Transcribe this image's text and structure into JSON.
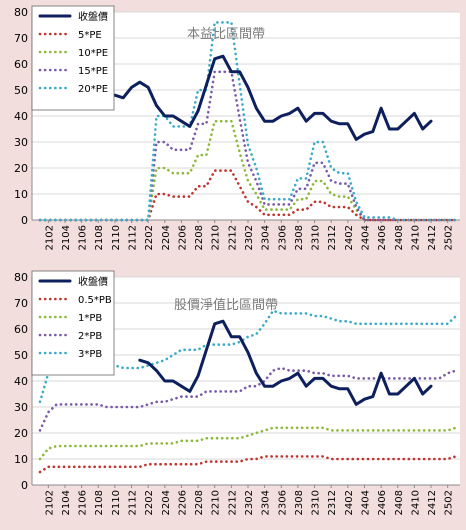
{
  "chart_data": [
    {
      "type": "line",
      "title": "本益比區間帶",
      "categories": [
        "2101",
        "2102",
        "2103",
        "2104",
        "2105",
        "2106",
        "2107",
        "2108",
        "2109",
        "2110",
        "2111",
        "2112",
        "2201",
        "2202",
        "2203",
        "2204",
        "2205",
        "2206",
        "2207",
        "2208",
        "2209",
        "2210",
        "2211",
        "2212",
        "2301",
        "2302",
        "2303",
        "2304",
        "2305",
        "2306",
        "2307",
        "2308",
        "2309",
        "2310",
        "2311",
        "2312",
        "2401",
        "2402",
        "2403",
        "2404",
        "2405",
        "2406",
        "2407",
        "2408",
        "2409",
        "2410",
        "2411",
        "2412",
        "2501",
        "2502",
        "2503"
      ],
      "x_tick_labels": [
        "2102",
        "2104",
        "2106",
        "2108",
        "2110",
        "2112",
        "2202",
        "2204",
        "2206",
        "2208",
        "2210",
        "2212",
        "2302",
        "2304",
        "2306",
        "2308",
        "2310",
        "2312",
        "2402",
        "2404",
        "2406",
        "2408",
        "2410",
        "2412",
        "2502"
      ],
      "y_ticks": [
        "0",
        "10",
        "20",
        "30",
        "40",
        "50",
        "60",
        "70",
        "80"
      ],
      "ylim": [
        0,
        80
      ],
      "legend_position": "top-left",
      "series": [
        {
          "name": "收盤價",
          "color": "#0d1f5c",
          "style": "solid",
          "values": [
            null,
            null,
            null,
            null,
            null,
            null,
            null,
            null,
            null,
            48,
            47,
            51,
            53,
            51,
            44,
            40,
            40,
            38,
            36,
            42,
            52,
            62,
            63,
            57,
            57,
            51,
            43,
            38,
            38,
            40,
            41,
            43,
            38,
            41,
            41,
            38,
            37,
            37,
            31,
            33,
            34,
            43,
            35,
            35,
            38,
            41,
            35,
            38,
            null,
            null,
            null
          ]
        },
        {
          "name": "5*PE",
          "color": "#c0342e",
          "style": "dotted",
          "values": [
            0,
            0,
            0,
            0,
            0,
            0,
            0,
            0,
            0,
            0,
            0,
            0,
            0,
            0,
            10,
            10,
            9,
            9,
            9,
            13,
            13,
            19,
            19,
            19,
            13,
            7,
            5,
            2,
            2,
            2,
            2,
            4,
            4,
            7,
            7,
            5,
            5,
            5,
            2,
            0,
            0,
            0,
            0,
            0,
            0,
            0,
            0,
            0,
            0,
            0,
            0
          ]
        },
        {
          "name": "10*PE",
          "color": "#8db83a",
          "style": "dotted",
          "values": [
            0,
            0,
            0,
            0,
            0,
            0,
            0,
            0,
            0,
            0,
            0,
            0,
            0,
            0,
            20,
            20,
            18,
            18,
            18,
            25,
            25,
            38,
            38,
            38,
            26,
            15,
            10,
            4,
            4,
            4,
            4,
            8,
            8,
            15,
            15,
            10,
            9,
            9,
            4,
            0,
            0,
            0,
            0,
            0,
            0,
            0,
            0,
            0,
            0,
            0,
            0
          ]
        },
        {
          "name": "15*PE",
          "color": "#7a5aa8",
          "style": "dotted",
          "values": [
            0,
            0,
            0,
            0,
            0,
            0,
            0,
            0,
            0,
            0,
            0,
            0,
            0,
            0,
            30,
            30,
            27,
            27,
            27,
            37,
            37,
            57,
            57,
            57,
            39,
            22,
            15,
            6,
            6,
            6,
            6,
            12,
            12,
            22,
            22,
            15,
            14,
            14,
            5,
            0,
            0,
            0,
            0,
            0,
            0,
            0,
            0,
            0,
            0,
            0,
            0
          ]
        },
        {
          "name": "20*PE",
          "color": "#3aaac8",
          "style": "dotted",
          "values": [
            0,
            0,
            0,
            0,
            0,
            0,
            0,
            0,
            0,
            0,
            0,
            0,
            0,
            0,
            40,
            40,
            36,
            36,
            36,
            50,
            50,
            76,
            76,
            76,
            52,
            29,
            20,
            8,
            8,
            8,
            8,
            16,
            16,
            30,
            30,
            20,
            18,
            18,
            7,
            1,
            1,
            1,
            1,
            0,
            0,
            0,
            0,
            0,
            0,
            0,
            0
          ]
        }
      ]
    },
    {
      "type": "line",
      "title": "股價淨值比區間帶",
      "categories": [
        "2101",
        "2102",
        "2103",
        "2104",
        "2105",
        "2106",
        "2107",
        "2108",
        "2109",
        "2110",
        "2111",
        "2112",
        "2201",
        "2202",
        "2203",
        "2204",
        "2205",
        "2206",
        "2207",
        "2208",
        "2209",
        "2210",
        "2211",
        "2212",
        "2301",
        "2302",
        "2303",
        "2304",
        "2305",
        "2306",
        "2307",
        "2308",
        "2309",
        "2310",
        "2311",
        "2312",
        "2401",
        "2402",
        "2403",
        "2404",
        "2405",
        "2406",
        "2407",
        "2408",
        "2409",
        "2410",
        "2411",
        "2412",
        "2501",
        "2502",
        "2503"
      ],
      "x_tick_labels": [
        "2102",
        "2104",
        "2106",
        "2108",
        "2110",
        "2112",
        "2202",
        "2204",
        "2206",
        "2208",
        "2210",
        "2212",
        "2302",
        "2304",
        "2306",
        "2308",
        "2310",
        "2312",
        "2402",
        "2404",
        "2406",
        "2408",
        "2410",
        "2412",
        "2502"
      ],
      "y_ticks": [
        "0",
        "10",
        "20",
        "30",
        "40",
        "50",
        "60",
        "70",
        "80"
      ],
      "ylim": [
        0,
        80
      ],
      "legend_position": "top-left",
      "series": [
        {
          "name": "收盤價",
          "color": "#0d1f5c",
          "style": "solid",
          "values": [
            null,
            null,
            null,
            null,
            null,
            null,
            null,
            null,
            null,
            null,
            null,
            null,
            48,
            47,
            44,
            40,
            40,
            38,
            36,
            42,
            52,
            62,
            63,
            57,
            57,
            51,
            43,
            38,
            38,
            40,
            41,
            43,
            38,
            41,
            41,
            38,
            37,
            37,
            31,
            33,
            34,
            43,
            35,
            35,
            38,
            41,
            35,
            38,
            null,
            null,
            null
          ]
        },
        {
          "name": "0.5*PB",
          "color": "#c0342e",
          "style": "dotted",
          "values": [
            5,
            7,
            7,
            7,
            7,
            7,
            7,
            7,
            7,
            7,
            7,
            7,
            7,
            8,
            8,
            8,
            8,
            8,
            8,
            8,
            9,
            9,
            9,
            9,
            9,
            10,
            10,
            11,
            11,
            11,
            11,
            11,
            11,
            11,
            11,
            10,
            10,
            10,
            10,
            10,
            10,
            10,
            10,
            10,
            10,
            10,
            10,
            10,
            10,
            10,
            11
          ]
        },
        {
          "name": "1*PB",
          "color": "#8db83a",
          "style": "dotted",
          "values": [
            10,
            14,
            15,
            15,
            15,
            15,
            15,
            15,
            15,
            15,
            15,
            15,
            15,
            16,
            16,
            16,
            16,
            17,
            17,
            17,
            18,
            18,
            18,
            18,
            18,
            19,
            20,
            21,
            22,
            22,
            22,
            22,
            22,
            22,
            22,
            21,
            21,
            21,
            21,
            21,
            21,
            21,
            21,
            21,
            21,
            21,
            21,
            21,
            21,
            21,
            22
          ]
        },
        {
          "name": "2*PB",
          "color": "#7a5aa8",
          "style": "dotted",
          "values": [
            21,
            28,
            31,
            31,
            31,
            31,
            31,
            31,
            30,
            30,
            30,
            30,
            30,
            31,
            32,
            32,
            33,
            34,
            34,
            34,
            36,
            36,
            36,
            36,
            36,
            38,
            38,
            40,
            44,
            45,
            44,
            44,
            44,
            43,
            43,
            42,
            42,
            42,
            41,
            41,
            41,
            41,
            41,
            41,
            41,
            41,
            41,
            41,
            41,
            43,
            44
          ]
        },
        {
          "name": "3*PB",
          "color": "#3aaac8",
          "style": "dotted",
          "values": [
            32,
            43,
            48,
            47,
            47,
            46,
            46,
            46,
            46,
            46,
            45,
            45,
            45,
            46,
            47,
            48,
            50,
            52,
            52,
            52,
            54,
            54,
            54,
            54,
            55,
            57,
            58,
            62,
            67,
            66,
            66,
            66,
            66,
            65,
            65,
            64,
            63,
            63,
            62,
            62,
            62,
            62,
            62,
            62,
            62,
            62,
            62,
            62,
            62,
            62,
            65
          ]
        }
      ]
    }
  ]
}
